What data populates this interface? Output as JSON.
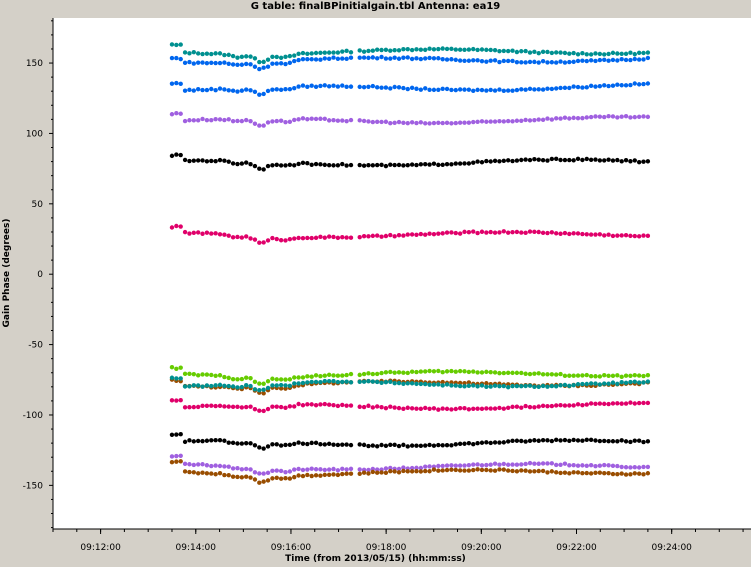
{
  "window": {
    "title": "G table: finalBPinitialgain.tbl    Antenna: ea19"
  },
  "chart_data": {
    "type": "scatter",
    "title": "G table: finalBPinitialgain.tbl    Antenna: ea19",
    "xlabel": "Time (from 2013/05/15) (hh:mm:ss)",
    "ylabel": "Gain Phase (degrees)",
    "x_ticks": [
      "09:12:00",
      "09:14:00",
      "09:16:00",
      "09:18:00",
      "09:20:00",
      "09:22:00",
      "09:24:00"
    ],
    "y_ticks": [
      150,
      100,
      50,
      0,
      -50,
      -100,
      -150
    ],
    "xlim": [
      "09:11:00",
      "09:25:40"
    ],
    "ylim": [
      -181,
      182
    ],
    "grid": false,
    "x_start": "09:13:30",
    "x_end": "09:23:30",
    "dip_time": "09:15:25",
    "gap_time": "09:17:20",
    "series": [
      {
        "color": "#009090",
        "start": 163,
        "base": 158,
        "end": 159
      },
      {
        "color": "#0066ee",
        "start": 155,
        "base": 152,
        "end": 154
      },
      {
        "color": "#0066ee",
        "start": 137,
        "base": 132,
        "end": 135
      },
      {
        "color": "#a060e0",
        "start": 114,
        "base": 109,
        "end": 111
      },
      {
        "color": "#000000",
        "start": 83,
        "base": 79,
        "end": 81
      },
      {
        "color": "#e0006a",
        "start": 32,
        "base": 28,
        "end": 29
      },
      {
        "color": "#66cc00",
        "start": -67,
        "base": -71,
        "end": -70
      },
      {
        "color": "#994d00",
        "start": -74,
        "base": -78,
        "end": -76
      },
      {
        "color": "#009090",
        "start": -72,
        "base": -78,
        "end": -78
      },
      {
        "color": "#e0006a",
        "start": -89,
        "base": -94,
        "end": -93
      },
      {
        "color": "#000000",
        "start": -115,
        "base": -120,
        "end": -119
      },
      {
        "color": "#a060e0",
        "start": -131,
        "base": -137,
        "end": -135
      },
      {
        "color": "#994d00",
        "start": -134,
        "base": -141,
        "end": -139
      }
    ]
  }
}
